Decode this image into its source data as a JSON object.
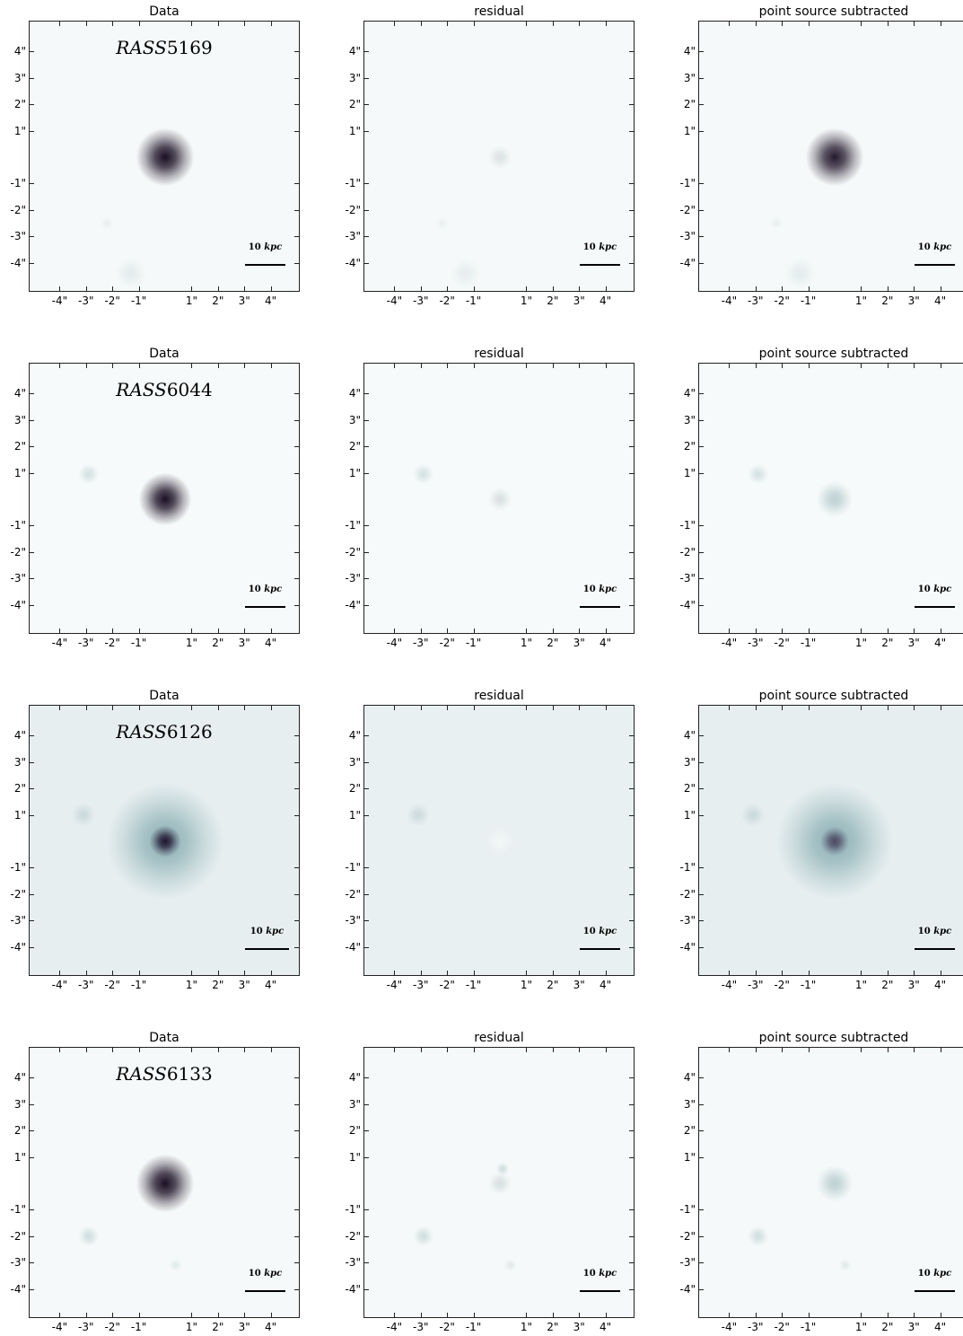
{
  "figure": {
    "panel_titles": [
      "Data",
      "residual",
      "point source subtracted"
    ],
    "rows": [
      {
        "object_prefix": "RASS",
        "object_number": "5169",
        "scale_bar": {
          "value": "10",
          "unit": "kpc"
        },
        "images": [
          {
            "kind": "data",
            "background": "#f6f9f9",
            "blobs": [
              {
                "x": 0,
                "y": 0,
                "r": 1.1,
                "intensity": 1.0,
                "color": "#1a0f24"
              },
              {
                "x": -1.3,
                "y": -4.4,
                "r": 0.6,
                "intensity": 0.25,
                "color": "#a9c5c8"
              },
              {
                "x": -2.2,
                "y": -2.5,
                "r": 0.25,
                "intensity": 0.25,
                "color": "#b9cfd1"
              }
            ]
          },
          {
            "kind": "residual",
            "background": "#f6f9f9",
            "blobs": [
              {
                "x": 0,
                "y": 0,
                "r": 0.45,
                "intensity": 0.6,
                "color": "#c9d4d6"
              },
              {
                "x": -1.3,
                "y": -4.4,
                "r": 0.6,
                "intensity": 0.22,
                "color": "#a9c5c8"
              },
              {
                "x": -2.2,
                "y": -2.5,
                "r": 0.25,
                "intensity": 0.22,
                "color": "#b9cfd1"
              }
            ]
          },
          {
            "kind": "subtracted",
            "background": "#f6f9f9",
            "blobs": [
              {
                "x": 0,
                "y": 0,
                "r": 1.1,
                "intensity": 0.95,
                "color": "#1a0f24"
              },
              {
                "x": -1.3,
                "y": -4.4,
                "r": 0.6,
                "intensity": 0.25,
                "color": "#a9c5c8"
              },
              {
                "x": -2.2,
                "y": -2.5,
                "r": 0.25,
                "intensity": 0.25,
                "color": "#b9cfd1"
              }
            ]
          }
        ]
      },
      {
        "object_prefix": "RASS",
        "object_number": "6044",
        "scale_bar": {
          "value": "10",
          "unit": "kpc"
        },
        "images": [
          {
            "kind": "data",
            "background": "#f7fafa",
            "blobs": [
              {
                "x": 0,
                "y": 0,
                "r": 1.0,
                "intensity": 1.0,
                "color": "#1a0f24"
              },
              {
                "x": -2.9,
                "y": 0.95,
                "r": 0.4,
                "intensity": 0.4,
                "color": "#9fbcc0"
              }
            ]
          },
          {
            "kind": "residual",
            "background": "#f7fafa",
            "blobs": [
              {
                "x": 0,
                "y": 0,
                "r": 0.45,
                "intensity": 0.6,
                "color": "#c3cfd1"
              },
              {
                "x": -2.9,
                "y": 0.95,
                "r": 0.4,
                "intensity": 0.4,
                "color": "#9fbcc0"
              }
            ]
          },
          {
            "kind": "subtracted",
            "background": "#f7fafa",
            "blobs": [
              {
                "x": 0,
                "y": 0,
                "r": 0.7,
                "intensity": 0.55,
                "color": "#8fb0b5"
              },
              {
                "x": -2.9,
                "y": 0.95,
                "r": 0.4,
                "intensity": 0.4,
                "color": "#9fbcc0"
              }
            ]
          }
        ]
      },
      {
        "object_prefix": "RASS",
        "object_number": "6126",
        "scale_bar": {
          "value": "10",
          "unit": "kpc"
        },
        "images": [
          {
            "kind": "data",
            "background": "#e6eeef",
            "blobs": [
              {
                "x": 0,
                "y": 0,
                "r": 2.2,
                "intensity": 0.85,
                "color": "#7fa7ad"
              },
              {
                "x": 0,
                "y": 0,
                "r": 0.6,
                "intensity": 1.0,
                "color": "#1f1530"
              },
              {
                "x": -3.1,
                "y": 1.0,
                "r": 0.45,
                "intensity": 0.3,
                "color": "#88a9ae"
              }
            ]
          },
          {
            "kind": "residual",
            "background": "#e9f0f1",
            "blobs": [
              {
                "x": 0,
                "y": 0,
                "r": 0.55,
                "intensity": 0.6,
                "color": "#f8fbfb"
              },
              {
                "x": -3.1,
                "y": 1.0,
                "r": 0.45,
                "intensity": 0.3,
                "color": "#88a9ae"
              }
            ]
          },
          {
            "kind": "subtracted",
            "background": "#e6eeef",
            "blobs": [
              {
                "x": 0,
                "y": 0,
                "r": 2.2,
                "intensity": 0.85,
                "color": "#7fa7ad"
              },
              {
                "x": 0,
                "y": 0,
                "r": 0.55,
                "intensity": 0.8,
                "color": "#3c2f4e"
              },
              {
                "x": -3.1,
                "y": 1.0,
                "r": 0.45,
                "intensity": 0.3,
                "color": "#88a9ae"
              }
            ]
          }
        ]
      },
      {
        "object_prefix": "RASS",
        "object_number": "6133",
        "scale_bar": {
          "value": "10",
          "unit": "kpc"
        },
        "images": [
          {
            "kind": "data",
            "background": "#f6f9f9",
            "blobs": [
              {
                "x": 0,
                "y": 0,
                "r": 1.1,
                "intensity": 1.0,
                "color": "#1a0f24"
              },
              {
                "x": -2.9,
                "y": -2.0,
                "r": 0.4,
                "intensity": 0.45,
                "color": "#9fbcc0"
              },
              {
                "x": 0.4,
                "y": -3.1,
                "r": 0.25,
                "intensity": 0.3,
                "color": "#adc6c9"
              }
            ]
          },
          {
            "kind": "residual",
            "background": "#f6f9f9",
            "blobs": [
              {
                "x": 0,
                "y": 0,
                "r": 0.45,
                "intensity": 0.6,
                "color": "#c3cfd1"
              },
              {
                "x": 0.1,
                "y": 0.55,
                "r": 0.25,
                "intensity": 0.4,
                "color": "#8eb0b5"
              },
              {
                "x": -2.9,
                "y": -2.0,
                "r": 0.4,
                "intensity": 0.45,
                "color": "#9fbcc0"
              },
              {
                "x": 0.4,
                "y": -3.1,
                "r": 0.25,
                "intensity": 0.3,
                "color": "#adc6c9"
              }
            ]
          },
          {
            "kind": "subtracted",
            "background": "#f6f9f9",
            "blobs": [
              {
                "x": 0,
                "y": 0,
                "r": 0.7,
                "intensity": 0.55,
                "color": "#8fb0b5"
              },
              {
                "x": -2.9,
                "y": -2.0,
                "r": 0.4,
                "intensity": 0.45,
                "color": "#9fbcc0"
              },
              {
                "x": 0.4,
                "y": -3.1,
                "r": 0.25,
                "intensity": 0.3,
                "color": "#adc6c9"
              }
            ]
          }
        ]
      }
    ],
    "y_ticks": [
      "4\"",
      "3\"",
      "2\"",
      "1\"",
      "-1\"",
      "-2\"",
      "-3\"",
      "-4\""
    ],
    "x_ticks": [
      "-4\"",
      "-3\"",
      "-2\"",
      "-1\"",
      "1\"",
      "2\"",
      "3\"",
      "4\""
    ]
  }
}
